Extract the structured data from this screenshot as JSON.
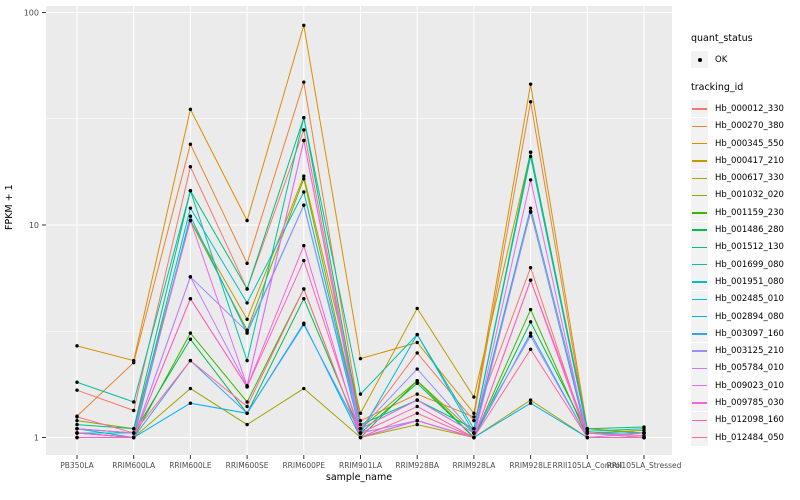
{
  "colors": {
    "panel_background": "#EBEBEB",
    "gridline": "#FFFFFF",
    "tick_label": "#4D4D4D",
    "tick_mark": "#333333",
    "point": "#000000",
    "legend_key_background": "#F2F2F2"
  },
  "axes": {
    "x_title": "sample_name",
    "y_title": "FPKM + 1"
  },
  "legend": {
    "quant_status_title": "quant_status",
    "quant_status_items": [
      {
        "label": "OK",
        "marker": "black-point"
      }
    ],
    "tracking_title": "tracking_id"
  },
  "chart_data": {
    "type": "line",
    "title": "",
    "xlabel": "sample_name",
    "ylabel": "FPKM + 1",
    "y_scale": "log10",
    "ylim": [
      0.93,
      110
    ],
    "y_ticks": [
      {
        "label": "1",
        "value": 1
      },
      {
        "label": "10",
        "value": 10
      },
      {
        "label": "100",
        "value": 100
      }
    ],
    "y_minor": [
      3.1623,
      31.6228
    ],
    "grid": "white major+minor gridlines on gray panel",
    "legend_position": "right",
    "point_marker": "small black circle (quant_status OK)",
    "categories": [
      "PB350LA",
      "RRIM600LA",
      "RRIM600LE",
      "RRIM600SE",
      "RRIM600PE",
      "RRIM901LA",
      "RRIM928BA",
      "RRIM928LA",
      "RRIM928LE",
      "RRII105LA_Control",
      "RRII105LA_Stressed"
    ],
    "series": [
      {
        "name": "Hb_000012_330",
        "color": "#F8766D",
        "values": [
          1.67,
          1.34,
          18.8,
          5.0,
          28,
          1.1,
          2.5,
          1.2,
          6.3,
          1.0,
          1.0
        ]
      },
      {
        "name": "Hb_000270_380",
        "color": "#EA8331",
        "values": [
          1.26,
          2.25,
          24,
          6.6,
          47,
          1.2,
          1.6,
          1.25,
          38,
          1.05,
          1.0
        ]
      },
      {
        "name": "Hb_000345_550",
        "color": "#D89000",
        "values": [
          2.7,
          2.3,
          35,
          10.5,
          87,
          2.35,
          2.8,
          1.3,
          46,
          1.1,
          1.05
        ]
      },
      {
        "name": "Hb_000417_210",
        "color": "#C09B00",
        "values": [
          1.1,
          1.05,
          10.5,
          3.6,
          17,
          1.3,
          4.05,
          1.55,
          22,
          1.1,
          1.05
        ]
      },
      {
        "name": "Hb_000617_330",
        "color": "#A3A500",
        "values": [
          1.05,
          1.0,
          1.7,
          1.15,
          1.7,
          1.0,
          1.15,
          1.0,
          1.5,
          1.0,
          1.0
        ]
      },
      {
        "name": "Hb_001032_020",
        "color": "#7CAE00",
        "values": [
          1.2,
          1.1,
          10.5,
          3.2,
          16.5,
          1.1,
          1.85,
          1.05,
          11.5,
          1.05,
          1.08
        ]
      },
      {
        "name": "Hb_001159_230",
        "color": "#39B600",
        "values": [
          1.05,
          1.0,
          3.1,
          1.47,
          5.0,
          1.0,
          1.85,
          1.0,
          4.0,
          1.0,
          1.0
        ]
      },
      {
        "name": "Hb_001486_280",
        "color": "#00BB4E",
        "values": [
          1.1,
          1.05,
          2.9,
          1.3,
          4.5,
          1.05,
          1.8,
          1.0,
          3.5,
          1.05,
          1.05
        ]
      },
      {
        "name": "Hb_001512_130",
        "color": "#00BF7D",
        "values": [
          1.15,
          1.1,
          14.5,
          5.0,
          32,
          1.15,
          1.5,
          1.1,
          22,
          1.1,
          1.12
        ]
      },
      {
        "name": "Hb_001699_080",
        "color": "#00C1A3",
        "values": [
          1.82,
          1.47,
          14.5,
          2.3,
          32,
          1.6,
          3.05,
          1.1,
          21,
          1.07,
          1.1
        ]
      },
      {
        "name": "Hb_001951_080",
        "color": "#00BFC4",
        "values": [
          1.05,
          1.05,
          12,
          4.3,
          14.3,
          1.1,
          1.5,
          1.05,
          12,
          1.05,
          1.05
        ]
      },
      {
        "name": "Hb_002485_010",
        "color": "#00BAE0",
        "values": [
          1.1,
          1.0,
          11,
          3.1,
          12.4,
          1.05,
          3.05,
          1.05,
          11.6,
          1.0,
          1.0
        ]
      },
      {
        "name": "Hb_002894_080",
        "color": "#00B0F6",
        "values": [
          1.0,
          1.0,
          1.45,
          1.3,
          3.45,
          1.0,
          1.2,
          1.0,
          1.45,
          1.0,
          1.0
        ]
      },
      {
        "name": "Hb_003097_160",
        "color": "#35A2FF",
        "values": [
          1.05,
          1.0,
          2.3,
          1.3,
          3.4,
          1.05,
          1.2,
          1.0,
          3.1,
          1.0,
          1.0
        ]
      },
      {
        "name": "Hb_003125_210",
        "color": "#9590FF",
        "values": [
          1.0,
          1.0,
          5.7,
          3.15,
          12.4,
          1.1,
          2.1,
          1.05,
          3.0,
          1.0,
          1.05
        ]
      },
      {
        "name": "Hb_005784_010",
        "color": "#C77CFF",
        "values": [
          1.05,
          1.0,
          5.7,
          1.75,
          25,
          1.05,
          1.2,
          1.0,
          11.6,
          1.05,
          1.0
        ]
      },
      {
        "name": "Hb_009023_010",
        "color": "#E76BF3",
        "values": [
          1.1,
          1.05,
          10.5,
          1.75,
          25,
          1.1,
          1.5,
          1.05,
          16.3,
          1.0,
          1.0
        ]
      },
      {
        "name": "Hb_009785_030",
        "color": "#FA62DB",
        "values": [
          1.0,
          1.0,
          4.5,
          1.73,
          8.0,
          1.0,
          1.2,
          1.0,
          5.5,
          1.0,
          1.0
        ]
      },
      {
        "name": "Hb_012098_160",
        "color": "#FF62BC",
        "values": [
          1.05,
          1.0,
          4.5,
          1.73,
          6.8,
          1.05,
          1.4,
          1.0,
          5.5,
          1.05,
          1.02
        ]
      },
      {
        "name": "Hb_012484_050",
        "color": "#FF6A98",
        "values": [
          1.25,
          1.05,
          2.3,
          1.4,
          5.0,
          1.0,
          1.3,
          1.0,
          2.6,
          1.0,
          1.0
        ]
      }
    ]
  }
}
